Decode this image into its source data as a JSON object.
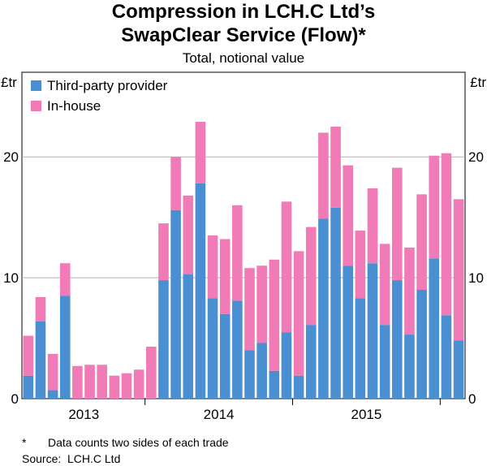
{
  "chart_data": {
    "type": "bar",
    "stacked": true,
    "title": "Compression in LCH.C Ltd’s",
    "title_line2": "SwapClear Service (Flow)*",
    "subtitle": "Total, notional value",
    "ylabel_left": "£tr",
    "ylabel_right": "£tr",
    "ylim": [
      0,
      27
    ],
    "yticks": [
      0,
      10,
      20
    ],
    "x_labels": [
      "2013",
      "2014",
      "2015"
    ],
    "grid": true,
    "legend_position": "top-left",
    "series": [
      {
        "name": "Third-party provider",
        "color": "#4a8fd1",
        "values": [
          1.9,
          6.4,
          0.7,
          8.5,
          0,
          0,
          0,
          0,
          0,
          0,
          0,
          9.8,
          15.6,
          10.3,
          17.8,
          8.3,
          7.0,
          8.1,
          4.0,
          4.6,
          2.3,
          5.5,
          1.9,
          6.1,
          14.9,
          15.8,
          11.0,
          8.3,
          11.2,
          6.1,
          9.8,
          5.3,
          9.0,
          11.6,
          6.9,
          4.8
        ]
      },
      {
        "name": "In-house",
        "color": "#f07bb7",
        "values": [
          3.3,
          2.0,
          3.0,
          2.7,
          2.7,
          2.8,
          2.8,
          1.9,
          2.1,
          2.4,
          4.3,
          4.7,
          4.4,
          6.5,
          5.1,
          5.2,
          6.2,
          7.9,
          6.8,
          6.4,
          9.2,
          10.8,
          10.3,
          8.1,
          7.1,
          6.7,
          8.3,
          5.6,
          6.2,
          6.7,
          9.3,
          7.2,
          7.9,
          8.5,
          13.4,
          11.7
        ]
      }
    ]
  },
  "footnotes": {
    "mark": "*",
    "note": "Data counts two sides of each trade",
    "source_label": "Source:",
    "source": "LCH.C Ltd"
  }
}
